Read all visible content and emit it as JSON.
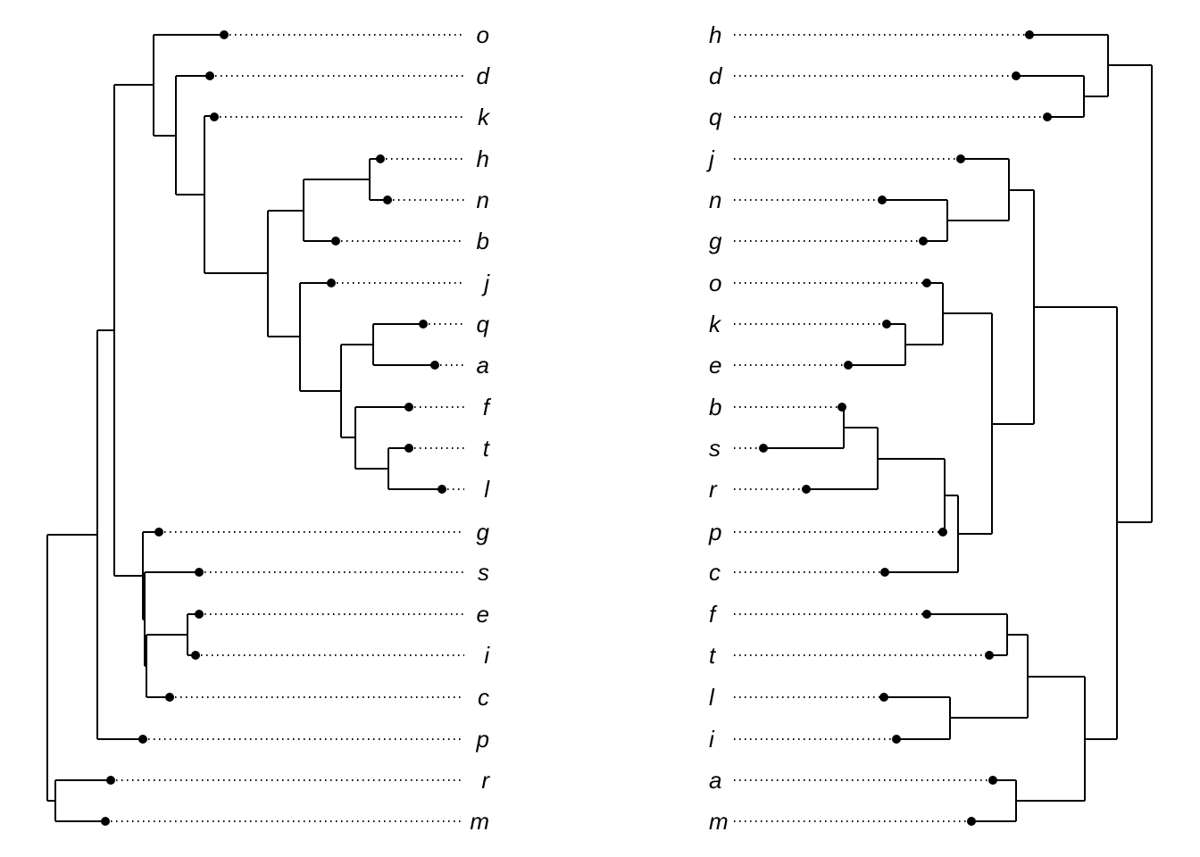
{
  "left_tree": {
    "labels": [
      "o",
      "d",
      "k",
      "h",
      "n",
      "b",
      "j",
      "q",
      "a",
      "f",
      "t",
      "l",
      "g",
      "s",
      "e",
      "i",
      "c",
      "p",
      "r",
      "m"
    ]
  },
  "right_tree": {
    "labels": [
      "h",
      "d",
      "q",
      "j",
      "n",
      "g",
      "o",
      "k",
      "e",
      "b",
      "s",
      "r",
      "p",
      "c",
      "f",
      "t",
      "l",
      "i",
      "a",
      "m"
    ]
  }
}
